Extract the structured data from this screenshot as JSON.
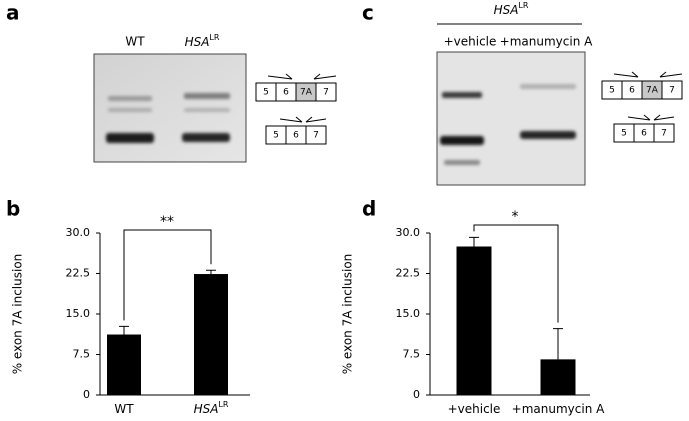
{
  "panels": [
    "a",
    "b",
    "c",
    "d"
  ],
  "gel_a": {
    "lanes": [
      "WT",
      "HSA"
    ],
    "lane_superscripts": [
      null,
      "LR"
    ]
  },
  "gel_c": {
    "header": "HSA",
    "header_superscript": "LR",
    "lanes": [
      "+vehicle",
      "+manumycin A"
    ]
  },
  "exons": {
    "long": [
      "5",
      "6",
      "7A",
      "7"
    ],
    "short": [
      "5",
      "6",
      "7"
    ]
  },
  "chart_data": [
    {
      "type": "bar",
      "categories": [
        "WT",
        "HSA"
      ],
      "category_superscripts": [
        null,
        "LR"
      ],
      "values": [
        11.2,
        22.4
      ],
      "errors": [
        1.5,
        0.7
      ],
      "color": "#000000",
      "ylabel": "% exon 7A inclusion",
      "ylim": [
        0,
        30
      ],
      "yticks": [
        0,
        7.5,
        {
          "value": 15,
          "label": "15.0"
        },
        22.5,
        {
          "value": 30,
          "label": "30.0"
        }
      ],
      "annotation": "**"
    },
    {
      "type": "bar",
      "categories": [
        "+vehicle",
        "+manumycin A"
      ],
      "category_superscripts": [
        null,
        null
      ],
      "values": [
        27.5,
        6.6
      ],
      "errors": [
        1.7,
        5.7
      ],
      "color": "#000000",
      "ylabel": "% exon 7A inclusion",
      "ylim": [
        0,
        30
      ],
      "yticks": [
        0,
        7.5,
        {
          "value": 15,
          "label": "15.0"
        },
        22.5,
        {
          "value": 30,
          "label": "30.0"
        }
      ],
      "annotation": "*"
    }
  ]
}
